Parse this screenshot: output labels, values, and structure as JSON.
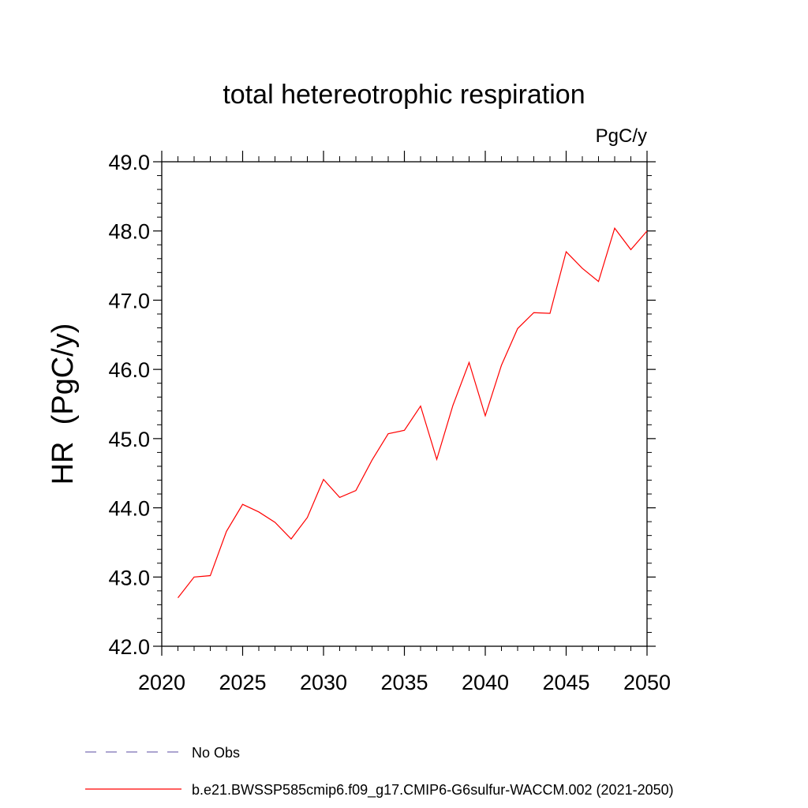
{
  "chart_data": {
    "type": "line",
    "title": "total hetereotrophic respiration",
    "units_label": "PgC/y",
    "ylabel": "HR  (PgC/y)",
    "xlabel": "",
    "xlim": [
      2020,
      2050
    ],
    "ylim": [
      42.0,
      49.0
    ],
    "x_ticks": [
      2020,
      2025,
      2030,
      2035,
      2040,
      2045,
      2050
    ],
    "x_tick_labels": [
      "2020",
      "2025",
      "2030",
      "2035",
      "2040",
      "2045",
      "2050"
    ],
    "y_ticks": [
      42.0,
      43.0,
      44.0,
      45.0,
      46.0,
      47.0,
      48.0,
      49.0
    ],
    "y_tick_labels": [
      "42.0",
      "43.0",
      "44.0",
      "45.0",
      "46.0",
      "47.0",
      "48.0",
      "49.0"
    ],
    "grid": false,
    "legend_position": "bottom",
    "series": [
      {
        "name": "b.e21.BWSSP585cmip6.f09_g17.CMIP6-G6sulfur-WACCM.002 (2021-2050)",
        "color": "#ff0000",
        "style": "solid",
        "x": [
          2021,
          2022,
          2023,
          2024,
          2025,
          2026,
          2027,
          2028,
          2029,
          2030,
          2031,
          2032,
          2033,
          2034,
          2035,
          2036,
          2037,
          2038,
          2039,
          2040,
          2041,
          2042,
          2043,
          2044,
          2045,
          2046,
          2047,
          2048,
          2049,
          2050
        ],
        "y": [
          42.7,
          43.0,
          43.02,
          43.66,
          44.05,
          43.94,
          43.79,
          43.55,
          43.86,
          44.41,
          44.15,
          44.25,
          44.69,
          45.07,
          45.12,
          45.47,
          44.7,
          45.48,
          46.1,
          45.33,
          46.06,
          46.59,
          46.82,
          46.81,
          47.7,
          47.46,
          47.27,
          48.04,
          47.73,
          48.0
        ]
      }
    ],
    "legend": [
      {
        "label": "No Obs",
        "color": "#7a6fb5",
        "style": "dashed"
      },
      {
        "label": "b.e21.BWSSP585cmip6.f09_g17.CMIP6-G6sulfur-WACCM.002 (2021-2050)",
        "color": "#ff0000",
        "style": "solid"
      }
    ]
  }
}
